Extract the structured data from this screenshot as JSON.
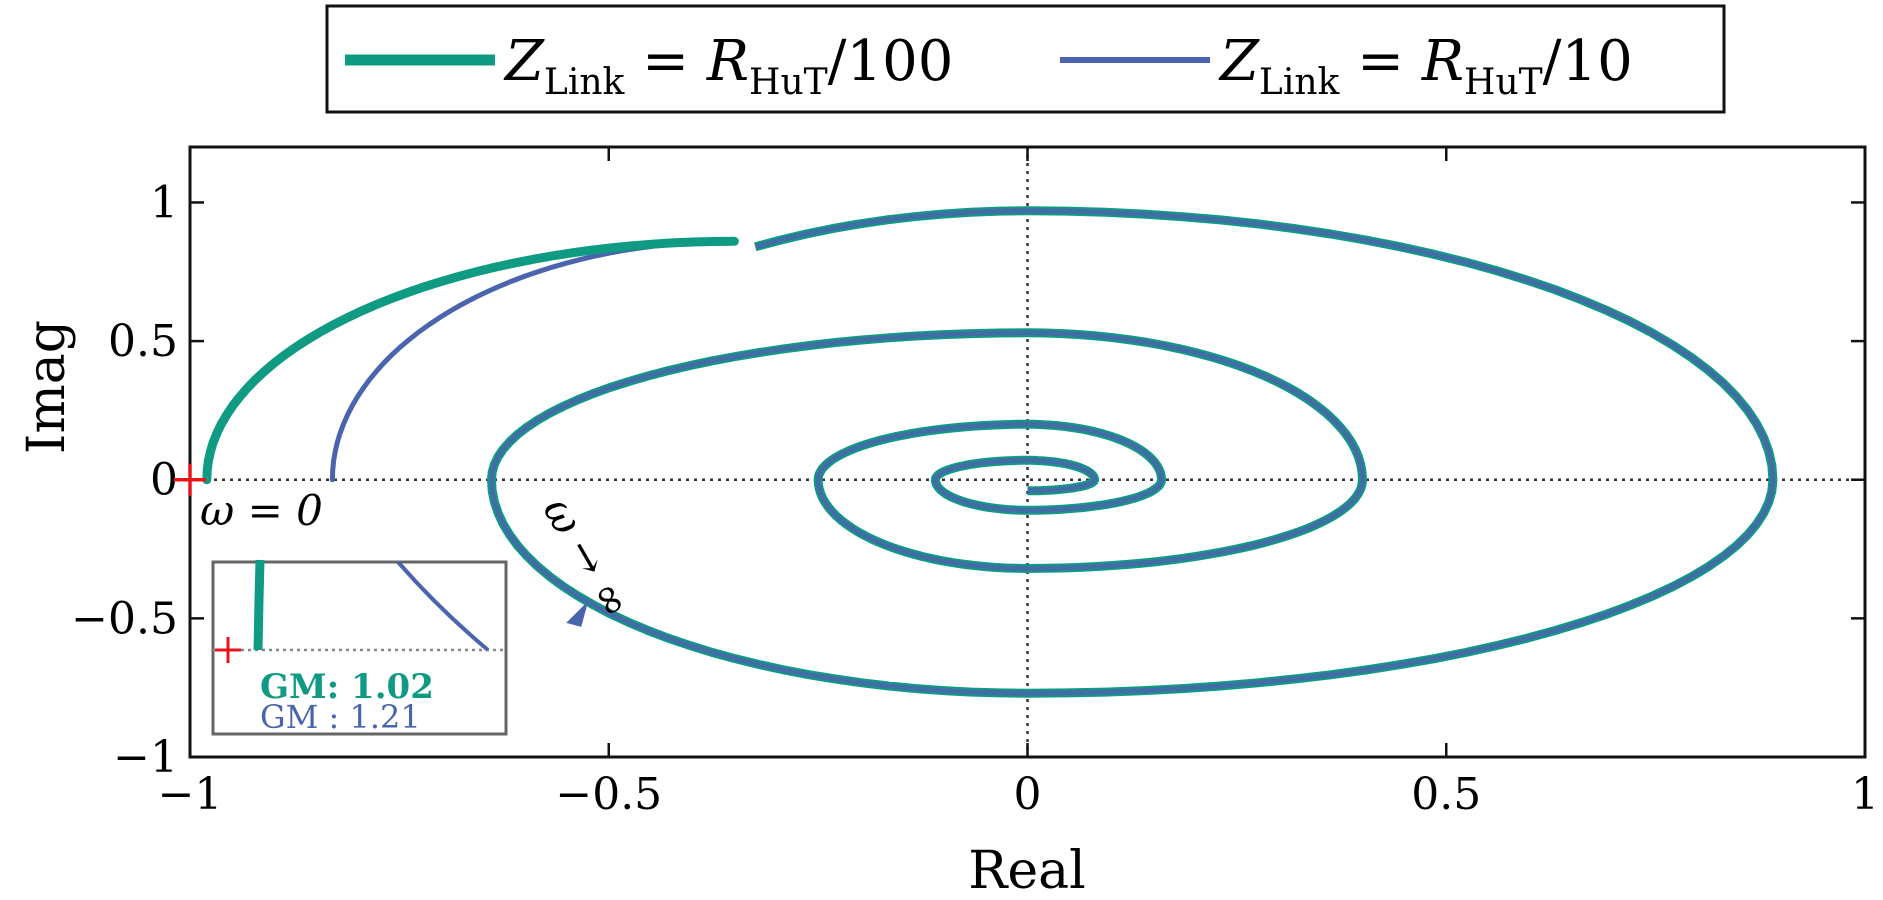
{
  "chart_data": {
    "type": "line",
    "xlabel": "Real",
    "ylabel": "Imag",
    "xlim": [
      -1,
      1
    ],
    "ylim": [
      -1,
      1.2
    ],
    "xticks": [
      -1,
      -0.5,
      0,
      0.5,
      1
    ],
    "xtick_labels": [
      "−1",
      "−0.5",
      "0",
      "0.5",
      "1"
    ],
    "yticks": [
      -1,
      -0.5,
      0,
      0.5,
      1
    ],
    "ytick_labels": [
      "−1",
      "−0.5",
      "0",
      "0.5",
      "1"
    ],
    "grid": false,
    "reference_lines": [
      "x = 0",
      "y = 0"
    ],
    "legend_position": "top",
    "critical_point": {
      "x": -1,
      "y": 0,
      "marker": "+",
      "color": "#e8141b"
    },
    "series": [
      {
        "name": "Z_Link = R_HuT/100",
        "legend": {
          "base": "Z",
          "sub": "Link",
          "eq": " = ",
          "base2": "R",
          "sub2": "HuT",
          "tail": "/100"
        },
        "color": "#0f9b83",
        "start_point": [
          -0.98,
          0.0
        ],
        "gain_margin": "1.02"
      },
      {
        "name": "Z_Link = R_HuT/10",
        "legend": {
          "base": "Z",
          "sub": "Link",
          "eq": " = ",
          "base2": "R",
          "sub2": "HuT",
          "tail": "/10"
        },
        "color": "#4a64ad",
        "start_point": [
          -0.83,
          0.0
        ],
        "gain_margin": "1.21"
      }
    ],
    "spiral": {
      "description_points": [
        [
          -0.65,
          0.0
        ],
        [
          0.0,
          0.97
        ],
        [
          0.89,
          0.0
        ],
        [
          0.0,
          -0.77
        ],
        [
          -0.64,
          0.0
        ],
        [
          0.0,
          0.53
        ],
        [
          0.4,
          0.0
        ],
        [
          0.0,
          -0.32
        ],
        [
          -0.25,
          0.0
        ],
        [
          0.0,
          0.2
        ],
        [
          0.16,
          0.0
        ],
        [
          0.0,
          -0.11
        ],
        [
          -0.11,
          0.0
        ],
        [
          0.0,
          0.07
        ],
        [
          0.08,
          0.0
        ],
        [
          0.0,
          -0.04
        ]
      ]
    },
    "annotations": {
      "omega_zero": "ω = 0",
      "omega_inf": "ω → ∞"
    },
    "inset": {
      "gm_label_1": "GM: 1.02",
      "gm_label_2": "GM :  1.21"
    }
  }
}
